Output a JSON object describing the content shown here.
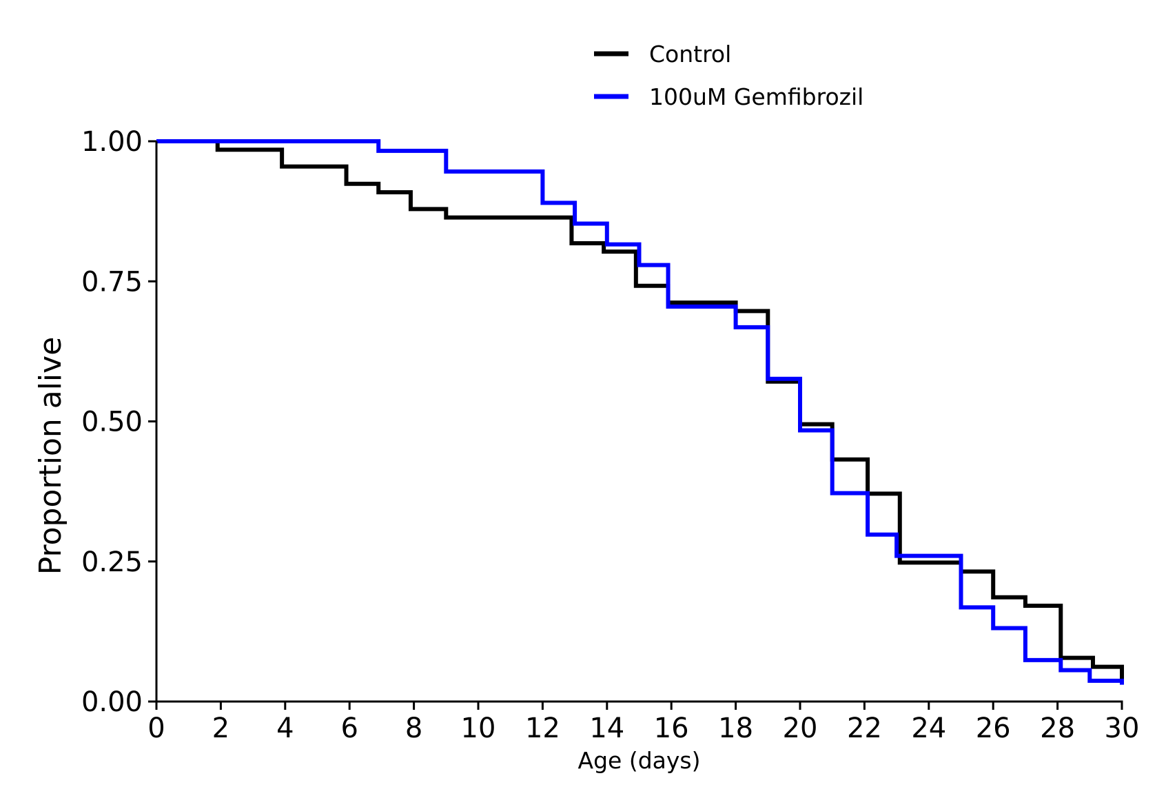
{
  "chart_data": {
    "type": "line",
    "step": true,
    "xlabel": "Age (days)",
    "ylabel": "Proportion alive",
    "xlim": [
      0,
      30
    ],
    "ylim": [
      0,
      1
    ],
    "x_ticks": [
      0,
      2,
      4,
      6,
      8,
      10,
      12,
      14,
      16,
      18,
      20,
      22,
      24,
      26,
      28,
      30
    ],
    "x_tick_labels": [
      "0",
      "2",
      "4",
      "6",
      "8",
      "10",
      "12",
      "14",
      "16",
      "18",
      "20",
      "22",
      "24",
      "26",
      "28",
      "30"
    ],
    "y_ticks": [
      0,
      0.25,
      0.5,
      0.75,
      1.0
    ],
    "y_tick_labels": [
      "0.00",
      "0.25",
      "0.50",
      "0.75",
      "1.00"
    ],
    "grid": false,
    "legend_position": "top-center",
    "series": [
      {
        "name": "Control",
        "color": "#000000",
        "x": [
          0,
          1.9,
          3.9,
          5.9,
          6.9,
          7.9,
          9.0,
          12.9,
          13.9,
          14.9,
          15.9,
          18.0,
          19.0,
          20.0,
          21.0,
          22.1,
          23.1,
          25.0,
          26.0,
          27.0,
          28.1,
          29.1,
          30.0
        ],
        "y": [
          1.0,
          0.985,
          0.955,
          0.924,
          0.909,
          0.879,
          0.864,
          0.818,
          0.803,
          0.742,
          0.712,
          0.697,
          0.571,
          0.495,
          0.432,
          0.371,
          0.248,
          0.232,
          0.186,
          0.171,
          0.078,
          0.062,
          0.035
        ]
      },
      {
        "name": "100uM Gemfibrozil",
        "color": "#0000ff",
        "x": [
          0,
          6.9,
          9.0,
          12.0,
          13.0,
          14.0,
          15.0,
          15.9,
          18.0,
          19.0,
          20.0,
          21.0,
          22.1,
          23.0,
          25.0,
          26.0,
          27.0,
          28.1,
          29.0,
          30.0
        ],
        "y": [
          1.0,
          0.983,
          0.946,
          0.89,
          0.853,
          0.816,
          0.779,
          0.705,
          0.668,
          0.576,
          0.484,
          0.372,
          0.298,
          0.26,
          0.168,
          0.131,
          0.074,
          0.056,
          0.037,
          0.03
        ]
      }
    ]
  }
}
